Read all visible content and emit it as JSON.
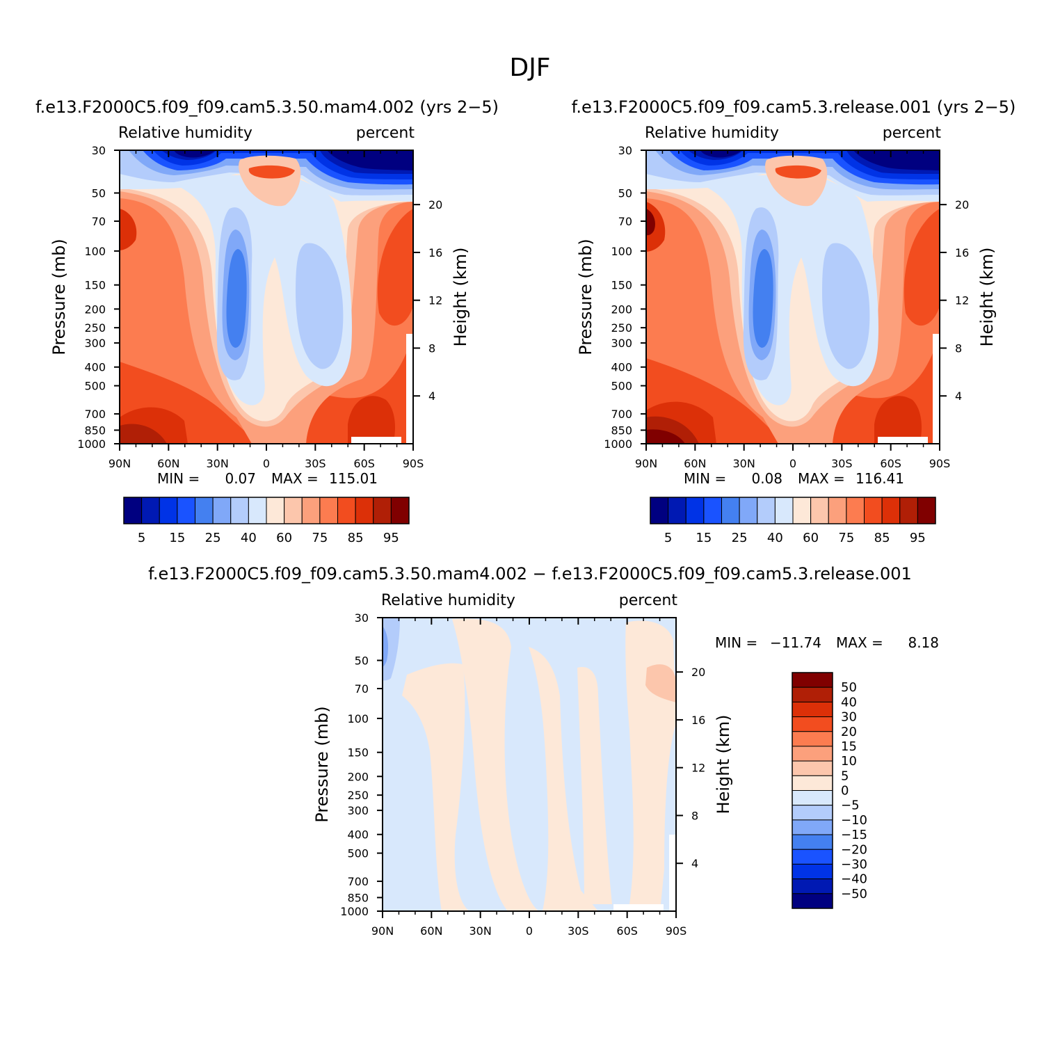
{
  "figure": {
    "title": "DJF"
  },
  "chart_data": [
    {
      "type": "heatmap",
      "title": "f.e13.F2000C5.f09_f09.cam5.3.50.mam4.002 (yrs 2−5)",
      "subtitle_left": "Relative humidity",
      "subtitle_right": "percent",
      "xlabel": "",
      "ylabel": "Pressure (mb)",
      "ylabel_right": "Height (km)",
      "x_ticks": [
        "90N",
        "60N",
        "30N",
        "0",
        "30S",
        "60S",
        "90S"
      ],
      "y_ticks": [
        "30",
        "50",
        "70",
        "100",
        "150",
        "200",
        "250",
        "300",
        "400",
        "500",
        "700",
        "850",
        "1000"
      ],
      "y_right_ticks": [
        "20",
        "16",
        "12",
        "8",
        "4"
      ],
      "min_label": "MIN =",
      "min_value": "0.07",
      "max_label": "MAX =",
      "max_value": "115.01",
      "colorbar": {
        "orientation": "horizontal",
        "labels": [
          "5",
          "15",
          "25",
          "40",
          "60",
          "75",
          "85",
          "95"
        ],
        "colors": [
          "#000080",
          "#0019b3",
          "#0033e6",
          "#1a53ff",
          "#4480f0",
          "#80a8f8",
          "#b3ccfb",
          "#d8e8fc",
          "#fde8d8",
          "#fcc6ac",
          "#fca07c",
          "#fc7c50",
          "#f24d1f",
          "#dc3008",
          "#b01f06",
          "#800000"
        ]
      }
    },
    {
      "type": "heatmap",
      "title": "f.e13.F2000C5.f09_f09.cam5.3.release.001 (yrs 2−5)",
      "subtitle_left": "Relative humidity",
      "subtitle_right": "percent",
      "xlabel": "",
      "ylabel": "Pressure (mb)",
      "ylabel_right": "Height (km)",
      "x_ticks": [
        "90N",
        "60N",
        "30N",
        "0",
        "30S",
        "60S",
        "90S"
      ],
      "y_ticks": [
        "30",
        "50",
        "70",
        "100",
        "150",
        "200",
        "250",
        "300",
        "400",
        "500",
        "700",
        "850",
        "1000"
      ],
      "y_right_ticks": [
        "20",
        "16",
        "12",
        "8",
        "4"
      ],
      "min_label": "MIN =",
      "min_value": "0.08",
      "max_label": "MAX =",
      "max_value": "116.41",
      "colorbar": {
        "orientation": "horizontal",
        "labels": [
          "5",
          "15",
          "25",
          "40",
          "60",
          "75",
          "85",
          "95"
        ],
        "colors": [
          "#000080",
          "#0019b3",
          "#0033e6",
          "#1a53ff",
          "#4480f0",
          "#80a8f8",
          "#b3ccfb",
          "#d8e8fc",
          "#fde8d8",
          "#fcc6ac",
          "#fca07c",
          "#fc7c50",
          "#f24d1f",
          "#dc3008",
          "#b01f06",
          "#800000"
        ]
      }
    },
    {
      "type": "heatmap",
      "title": "f.e13.F2000C5.f09_f09.cam5.3.50.mam4.002 − f.e13.F2000C5.f09_f09.cam5.3.release.001",
      "subtitle_left": "Relative humidity",
      "subtitle_right": "percent",
      "xlabel": "",
      "ylabel": "Pressure (mb)",
      "ylabel_right": "Height (km)",
      "x_ticks": [
        "90N",
        "60N",
        "30N",
        "0",
        "30S",
        "60S",
        "90S"
      ],
      "y_ticks": [
        "30",
        "50",
        "70",
        "100",
        "150",
        "200",
        "250",
        "300",
        "400",
        "500",
        "700",
        "850",
        "1000"
      ],
      "y_right_ticks": [
        "20",
        "16",
        "12",
        "8",
        "4"
      ],
      "min_label": "MIN =",
      "min_value": "−11.74",
      "max_label": "MAX =",
      "max_value": "8.18",
      "colorbar": {
        "orientation": "vertical",
        "labels": [
          "50",
          "40",
          "30",
          "20",
          "15",
          "10",
          "5",
          "0",
          "−5",
          "−10",
          "−15",
          "−20",
          "−30",
          "−40",
          "−50"
        ],
        "colors": [
          "#800000",
          "#b01f06",
          "#dc3008",
          "#f24d1f",
          "#fc7c50",
          "#fca07c",
          "#fcc6ac",
          "#fde8d8",
          "#d8e8fc",
          "#b3ccfb",
          "#80a8f8",
          "#4480f0",
          "#1a53ff",
          "#0033e6",
          "#0019b3",
          "#000080"
        ]
      }
    }
  ]
}
